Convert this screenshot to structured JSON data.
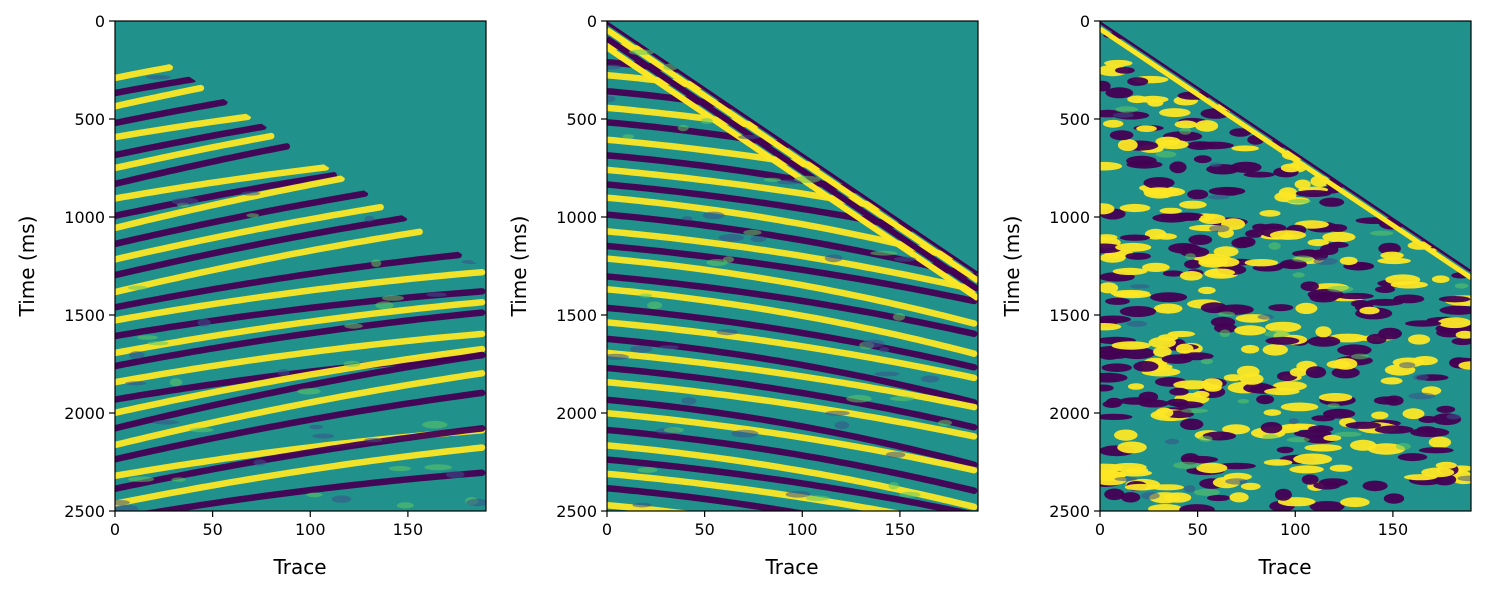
{
  "chart_data": [
    {
      "type": "heatmap",
      "title": "",
      "xlabel": "Trace",
      "ylabel": "Time (ms)",
      "xlim": [
        0,
        190
      ],
      "ylim": [
        2500,
        0
      ],
      "x_ticks": [
        "0",
        "50",
        "100",
        "150"
      ],
      "y_ticks": [
        "0",
        "500",
        "1000",
        "1500",
        "2000",
        "2500"
      ],
      "x_tick_values": [
        0,
        50,
        100,
        150
      ],
      "y_tick_values": [
        0,
        500,
        1000,
        1500,
        2000,
        2500
      ],
      "colormap": "viridis",
      "grid": false,
      "content": "seismic shot gather with muted first-break triangle (mute line from trace 25 at 200 ms to trace 190 at 1270 ms)",
      "mute_line": [
        [
          25,
          200
        ],
        [
          190,
          1270
        ]
      ]
    },
    {
      "type": "heatmap",
      "title": "",
      "xlabel": "Trace",
      "ylabel": "Time (ms)",
      "xlim": [
        0,
        190
      ],
      "ylim": [
        2500,
        0
      ],
      "x_ticks": [
        "0",
        "50",
        "100",
        "150"
      ],
      "y_ticks": [
        "0",
        "500",
        "1000",
        "1500",
        "2000",
        "2500"
      ],
      "x_tick_values": [
        0,
        50,
        100,
        150
      ],
      "y_tick_values": [
        0,
        500,
        1000,
        1500,
        2000,
        2500
      ],
      "colormap": "viridis",
      "grid": false,
      "content": "seismic shot gather with linear direct arrivals from trace 0 at 0 ms down to trace 190 at about 1300 ms",
      "mute_line": [
        [
          0,
          0
        ],
        [
          190,
          1280
        ]
      ]
    },
    {
      "type": "heatmap",
      "title": "",
      "xlabel": "Trace",
      "ylabel": "Time (ms)",
      "xlim": [
        0,
        190
      ],
      "ylim": [
        2500,
        0
      ],
      "x_ticks": [
        "0",
        "50",
        "100",
        "150"
      ],
      "y_ticks": [
        "0",
        "500",
        "1000",
        "1500",
        "2000",
        "2500"
      ],
      "x_tick_values": [
        0,
        50,
        100,
        150
      ],
      "y_tick_values": [
        0,
        500,
        1000,
        1500,
        2000,
        2500
      ],
      "colormap": "viridis",
      "grid": false,
      "content": "difference / noise panel, blobby viridis pattern below mute line from trace 0 at 0 ms to trace 190 at 1270 ms",
      "mute_line": [
        [
          0,
          0
        ],
        [
          190,
          1270
        ]
      ]
    }
  ]
}
